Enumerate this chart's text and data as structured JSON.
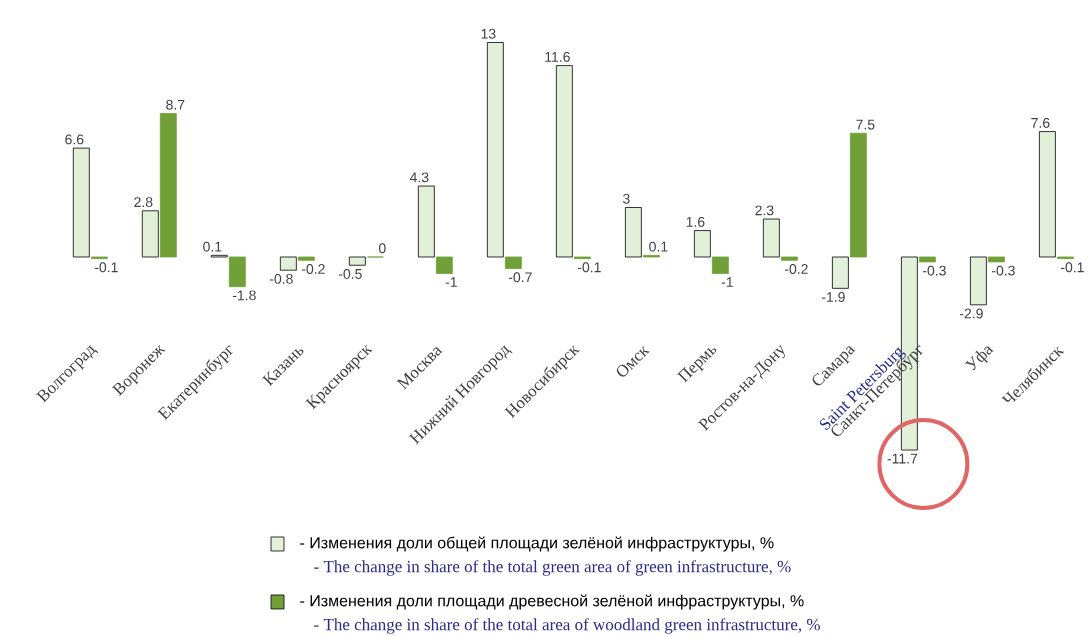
{
  "chart_data": {
    "type": "bar",
    "categories": [
      "Волгоград",
      "Воронеж",
      "Екатеринбург",
      "Казань",
      "Красноярск",
      "Москва",
      "Нижний Новгород",
      "Новосибирск",
      "Омск",
      "Пермь",
      "Ростов-на-Дону",
      "Самара",
      "Санкт-Петербург",
      "Уфа",
      "Челябинск"
    ],
    "series": [
      {
        "name": "- Изменения доли общей площади зелёной инфраструктуры, %",
        "color": "#e2efd9",
        "values": [
          6.6,
          2.8,
          0.1,
          -0.8,
          -0.5,
          4.3,
          13,
          11.6,
          3,
          1.6,
          2.3,
          -1.9,
          -11.7,
          -2.9,
          7.6
        ]
      },
      {
        "name": "- Изменения доли площади древесной зелёной инфраструктуры, %",
        "color": "#70a037",
        "values": [
          -0.1,
          8.7,
          -1.8,
          -0.2,
          0,
          -1,
          -0.7,
          -0.1,
          0.1,
          -1,
          -0.2,
          7.5,
          -0.3,
          -0.3,
          -0.1
        ]
      }
    ],
    "data_labels": true,
    "legend": "bottom",
    "annotations": [
      "Saint Petersburg",
      "- The change in share of the total green area of green infrastructure, %",
      "- The change in share of the total area of woodland green infrastructure, %"
    ]
  }
}
